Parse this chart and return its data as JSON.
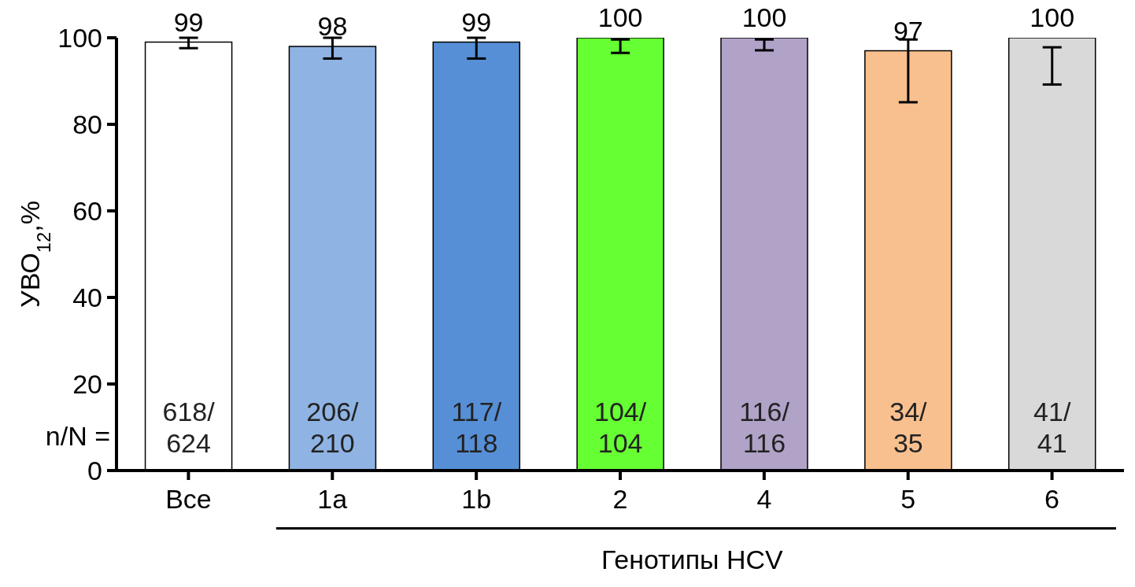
{
  "chart_data": {
    "type": "bar",
    "xlabel": "Генотипы HCV",
    "ylabel": "УВО$_{12}$,%",
    "categories": [
      "Все",
      "1a",
      "1b",
      "2",
      "4",
      "5",
      "6"
    ],
    "values": [
      99,
      98,
      99,
      100,
      100,
      97,
      100
    ],
    "colors": [
      "#ffffff",
      "#8fb3e3",
      "#568fd6",
      "#66ff33",
      "#b1a2c8",
      "#f8c08f",
      "#d9d9d9"
    ],
    "errors": [
      [
        97.6,
        100
      ],
      [
        95.2,
        100
      ],
      [
        95.2,
        100
      ],
      [
        96.5,
        99.6
      ],
      [
        97.1,
        99.6
      ],
      [
        85.1,
        99.6
      ],
      [
        89.2,
        97.8
      ]
    ],
    "ylim": [
      0,
      100
    ],
    "yticks": [
      0,
      20,
      40,
      60,
      80,
      100
    ],
    "grid": false,
    "legend": false,
    "data_labels": true,
    "annotations": [
      "n/N =",
      "618/\n624",
      "206/\n210",
      "117/\n118",
      "104/\n104",
      "116/\n116",
      "34/\n35",
      "41/\n41"
    ]
  }
}
